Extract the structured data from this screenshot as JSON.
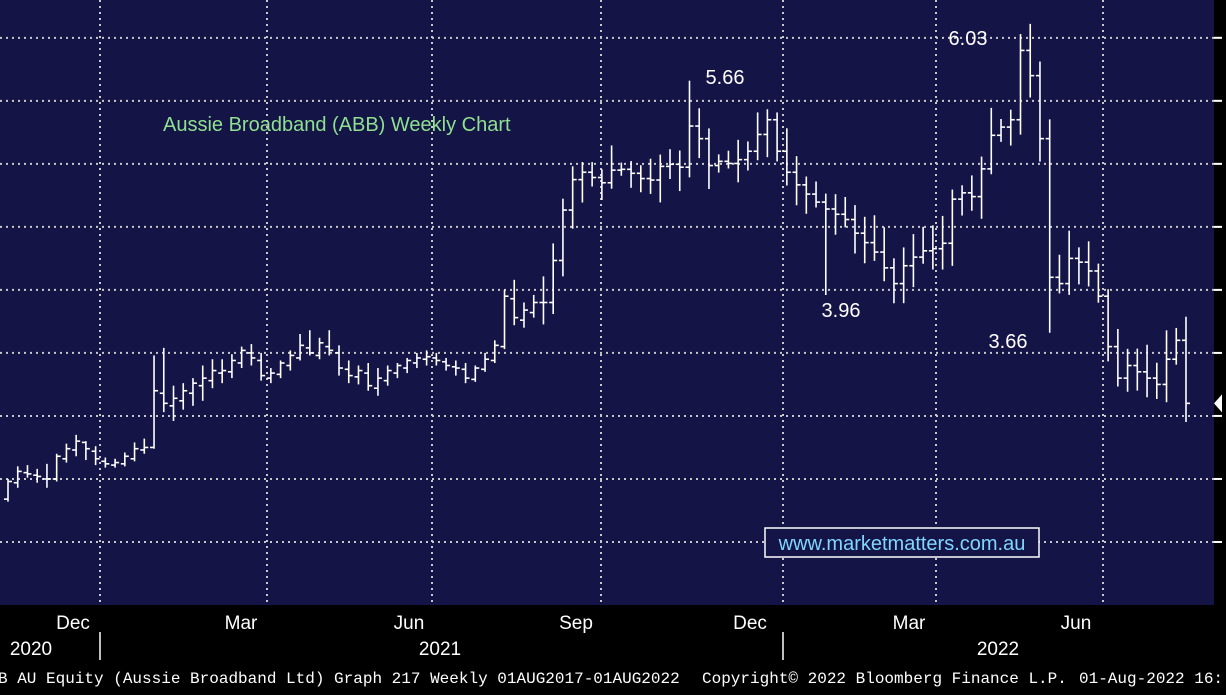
{
  "chart_data": {
    "type": "ohlc",
    "title": "Aussie Broadband (ABB) Weekly Chart",
    "watermark": "www.marketmatters.com.au",
    "ylim": [
      1.5,
      6.3
    ],
    "y_gridlines": [
      2.0,
      2.5,
      3.0,
      3.5,
      4.0,
      4.5,
      5.0,
      5.5,
      6.0
    ],
    "month_labels": [
      "Dec",
      "Mar",
      "Jun",
      "Sep",
      "Dec",
      "Mar",
      "Jun"
    ],
    "year_labels": [
      "2020",
      "2021",
      "2022"
    ],
    "annotations": [
      {
        "text": "5.66",
        "week": 44,
        "value": 5.66
      },
      {
        "text": "6.03",
        "week": 63,
        "value": 6.03
      },
      {
        "text": "3.96",
        "week": 52,
        "value": 3.96
      },
      {
        "text": "3.66",
        "week": 65,
        "value": 3.66
      }
    ],
    "series": [
      {
        "values": [
          [
            2.34,
            2.5,
            2.32,
            2.48
          ],
          [
            2.47,
            2.6,
            2.43,
            2.56
          ],
          [
            2.55,
            2.61,
            2.51,
            2.54
          ],
          [
            2.53,
            2.58,
            2.47,
            2.52
          ],
          [
            2.5,
            2.62,
            2.43,
            2.5
          ],
          [
            2.5,
            2.7,
            2.48,
            2.68
          ],
          [
            2.66,
            2.78,
            2.63,
            2.74
          ],
          [
            2.73,
            2.85,
            2.68,
            2.8
          ],
          [
            2.79,
            2.8,
            2.65,
            2.74
          ],
          [
            2.72,
            2.76,
            2.61,
            2.66
          ],
          [
            2.64,
            2.67,
            2.59,
            2.62
          ],
          [
            2.61,
            2.66,
            2.59,
            2.63
          ],
          [
            2.62,
            2.71,
            2.6,
            2.68
          ],
          [
            2.66,
            2.79,
            2.64,
            2.74
          ],
          [
            2.73,
            2.82,
            2.7,
            2.75
          ],
          [
            2.75,
            3.48,
            2.74,
            3.2
          ],
          [
            3.18,
            3.54,
            3.03,
            3.1
          ],
          [
            3.08,
            3.24,
            2.96,
            3.14
          ],
          [
            3.12,
            3.26,
            3.05,
            3.2
          ],
          [
            3.18,
            3.3,
            3.08,
            3.26
          ],
          [
            3.24,
            3.4,
            3.12,
            3.3
          ],
          [
            3.28,
            3.45,
            3.22,
            3.36
          ],
          [
            3.34,
            3.45,
            3.26,
            3.36
          ],
          [
            3.35,
            3.49,
            3.3,
            3.44
          ],
          [
            3.42,
            3.55,
            3.38,
            3.52
          ],
          [
            3.5,
            3.57,
            3.4,
            3.46
          ],
          [
            3.44,
            3.5,
            3.28,
            3.32
          ],
          [
            3.3,
            3.38,
            3.26,
            3.34
          ],
          [
            3.33,
            3.44,
            3.3,
            3.42
          ],
          [
            3.4,
            3.52,
            3.36,
            3.48
          ],
          [
            3.46,
            3.65,
            3.44,
            3.56
          ],
          [
            3.54,
            3.68,
            3.48,
            3.5
          ],
          [
            3.48,
            3.62,
            3.45,
            3.58
          ],
          [
            3.55,
            3.68,
            3.48,
            3.52
          ],
          [
            3.5,
            3.56,
            3.32,
            3.38
          ],
          [
            3.37,
            3.44,
            3.26,
            3.32
          ],
          [
            3.31,
            3.4,
            3.25,
            3.36
          ],
          [
            3.34,
            3.42,
            3.2,
            3.24
          ],
          [
            3.22,
            3.38,
            3.16,
            3.3
          ],
          [
            3.28,
            3.4,
            3.24,
            3.36
          ],
          [
            3.34,
            3.42,
            3.3,
            3.4
          ],
          [
            3.38,
            3.46,
            3.34,
            3.44
          ],
          [
            3.42,
            3.5,
            3.38,
            3.46
          ],
          [
            3.45,
            3.52,
            3.4,
            3.47
          ],
          [
            3.46,
            3.5,
            3.4,
            3.44
          ],
          [
            3.43,
            3.46,
            3.36,
            3.4
          ],
          [
            3.39,
            3.44,
            3.32,
            3.38
          ],
          [
            3.37,
            3.42,
            3.26,
            3.3
          ],
          [
            3.29,
            3.4,
            3.27,
            3.38
          ],
          [
            3.37,
            3.5,
            3.35,
            3.45
          ],
          [
            3.44,
            3.6,
            3.42,
            3.56
          ],
          [
            3.55,
            4.0,
            3.53,
            3.95
          ],
          [
            3.93,
            4.08,
            3.72,
            3.78
          ],
          [
            3.76,
            3.9,
            3.7,
            3.84
          ],
          [
            3.82,
            3.96,
            3.78,
            3.9
          ]
        ]
      }
    ]
  },
  "footer": {
    "left": "B AU Equity (Aussie Broadband Ltd) Graph 217  Weekly 01AUG2017-01AUG2022",
    "copyright": "Copyright© 2022 Bloomberg Finance L.P.",
    "date": "01-Aug-2022 16:"
  },
  "colors": {
    "plot_bg": "#141447",
    "gridline": "#c8c8c8",
    "bar": "#ffffff",
    "title": "#8fe08f",
    "watermark": "#7fd6ff"
  }
}
